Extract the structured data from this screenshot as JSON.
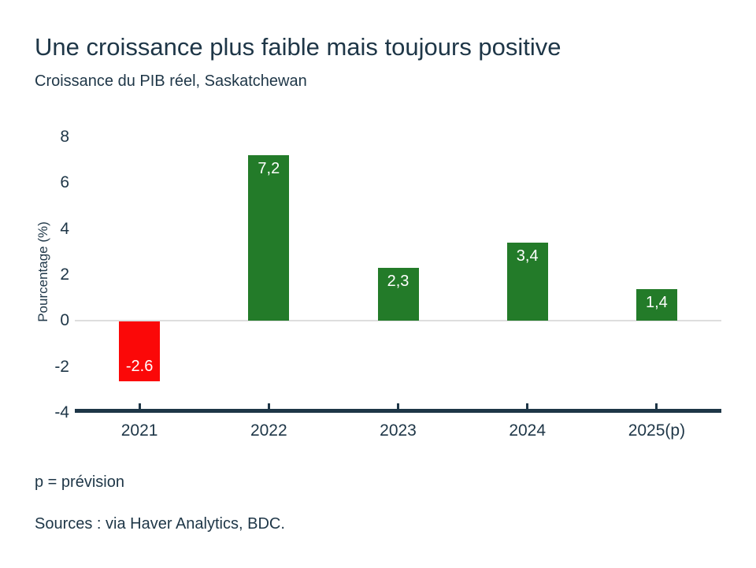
{
  "page": {
    "title": "Une croissance plus faible mais toujours positive",
    "subtitle": "Croissance du PIB réel, Saskatchewan",
    "footnote": "p = prévision",
    "sources": "Sources : via Haver Analytics, BDC."
  },
  "colors": {
    "background": "#FFFFFF",
    "text": "#1E3647",
    "positive_bar": "#237B29",
    "negative_bar": "#FB0808",
    "bar_label": "#FFFFFF",
    "axis_line": "#1E3647",
    "zero_line": "#DEDEDE"
  },
  "chart_data": {
    "type": "bar",
    "title": "Une croissance plus faible mais toujours positive",
    "subtitle": "Croissance du PIB réel, Saskatchewan",
    "xlabel": "",
    "ylabel": "Pourcentage (%)",
    "categories": [
      "2021",
      "2022",
      "2023",
      "2024",
      "2025(p)"
    ],
    "values": [
      -2.6,
      7.2,
      2.3,
      3.4,
      1.4
    ],
    "value_labels": [
      "-2.6",
      "7,2",
      "2,3",
      "3,4",
      "1,4"
    ],
    "bar_colors": [
      "#FB0808",
      "#237B29",
      "#237B29",
      "#237B29",
      "#237B29"
    ],
    "ylim": [
      -4,
      8
    ],
    "yticks": [
      8,
      6,
      4,
      2,
      0,
      -2,
      -4
    ],
    "ytick_labels": [
      "8",
      "6",
      "4",
      "2",
      "0",
      "-2",
      "-4"
    ],
    "grid": "zero-line-only",
    "legend": "none"
  }
}
